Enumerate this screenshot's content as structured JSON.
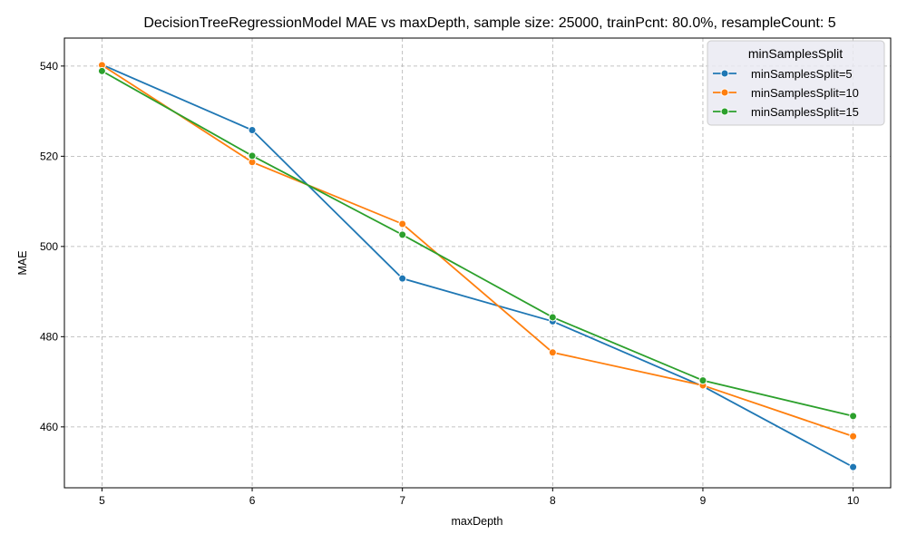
{
  "chart_data": {
    "type": "line",
    "title": "DecisionTreeRegressionModel MAE vs maxDepth, sample size: 25000, trainPcnt: 80.0%, resampleCount: 5",
    "xlabel": "maxDepth",
    "ylabel": "MAE",
    "x": [
      5,
      6,
      7,
      8,
      9,
      10
    ],
    "x_ticks": [
      "5",
      "6",
      "7",
      "8",
      "9",
      "10"
    ],
    "y_ticks": [
      "460",
      "480",
      "500",
      "520",
      "540"
    ],
    "y_tick_values": [
      460,
      480,
      500,
      520,
      540
    ],
    "xlim": [
      4.75,
      10.25
    ],
    "ylim": [
      446.5,
      546.2
    ],
    "grid": true,
    "legend": {
      "title": "minSamplesSplit",
      "placement": "top-right"
    },
    "series": [
      {
        "name": "minSamplesSplit=5",
        "color": "#1f77b4",
        "values": [
          540.3,
          525.8,
          492.9,
          483.4,
          469.0,
          451.1
        ]
      },
      {
        "name": "minSamplesSplit=10",
        "color": "#ff7f0e",
        "values": [
          540.2,
          518.7,
          505.0,
          476.5,
          469.2,
          457.9
        ]
      },
      {
        "name": "minSamplesSplit=15",
        "color": "#2ca02c",
        "values": [
          538.9,
          520.1,
          502.6,
          484.3,
          470.3,
          462.4
        ]
      }
    ]
  }
}
